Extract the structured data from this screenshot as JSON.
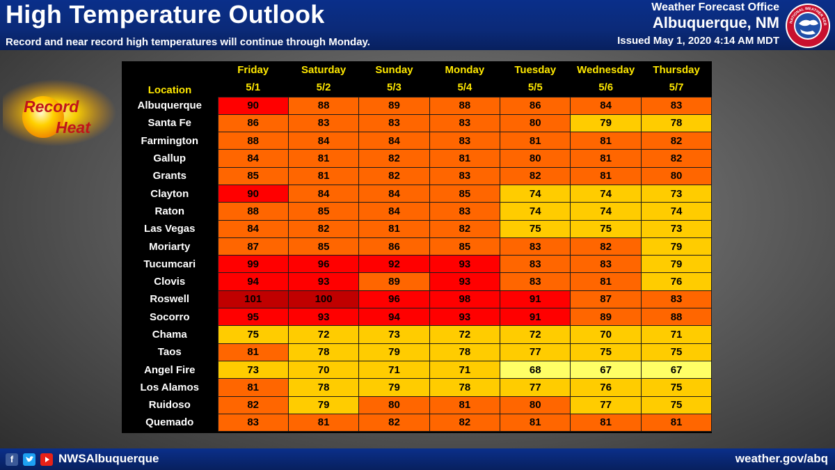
{
  "header": {
    "title": "High Temperature Outlook",
    "subtitle": "Record and near record high temperatures will continue through Monday.",
    "office": "Weather Forecast Office",
    "city": "Albuquerque, NM",
    "issued": "Issued May 1, 2020 4:14 AM MDT",
    "logo_text": "NATIONAL WEATHER SERVICE"
  },
  "badge": {
    "line1": "Record",
    "line2": "Heat"
  },
  "footer": {
    "handle": "NWSAlbuquerque",
    "website": "weather.gov/abq"
  },
  "colors": {
    "header_blue": "#0b2a78",
    "t67_68": "#ffff66",
    "t70_79": "#ffcc00",
    "t80_89": "#ff6600",
    "t90_99": "#ff0000",
    "t100plus": "#c00000"
  },
  "chart_data": {
    "type": "table",
    "title": "High Temperature Outlook",
    "location_header": "Location",
    "days": [
      "Friday",
      "Saturday",
      "Sunday",
      "Monday",
      "Tuesday",
      "Wednesday",
      "Thursday"
    ],
    "dates": [
      "5/1",
      "5/2",
      "5/3",
      "5/4",
      "5/5",
      "5/6",
      "5/7"
    ],
    "rows": [
      {
        "location": "Albuquerque",
        "values": [
          90,
          88,
          89,
          88,
          86,
          84,
          83
        ]
      },
      {
        "location": "Santa Fe",
        "values": [
          86,
          83,
          83,
          83,
          80,
          79,
          78
        ]
      },
      {
        "location": "Farmington",
        "values": [
          88,
          84,
          84,
          83,
          81,
          81,
          82
        ]
      },
      {
        "location": "Gallup",
        "values": [
          84,
          81,
          82,
          81,
          80,
          81,
          82
        ]
      },
      {
        "location": "Grants",
        "values": [
          85,
          81,
          82,
          83,
          82,
          81,
          80
        ]
      },
      {
        "location": "Clayton",
        "values": [
          90,
          84,
          84,
          85,
          74,
          74,
          73
        ]
      },
      {
        "location": "Raton",
        "values": [
          88,
          85,
          84,
          83,
          74,
          74,
          74
        ]
      },
      {
        "location": "Las Vegas",
        "values": [
          84,
          82,
          81,
          82,
          75,
          75,
          73
        ]
      },
      {
        "location": "Moriarty",
        "values": [
          87,
          85,
          86,
          85,
          83,
          82,
          79
        ]
      },
      {
        "location": "Tucumcari",
        "values": [
          99,
          96,
          92,
          93,
          83,
          83,
          79
        ]
      },
      {
        "location": "Clovis",
        "values": [
          94,
          93,
          89,
          93,
          83,
          81,
          76
        ]
      },
      {
        "location": "Roswell",
        "values": [
          101,
          100,
          96,
          98,
          91,
          87,
          83
        ]
      },
      {
        "location": "Socorro",
        "values": [
          95,
          93,
          94,
          93,
          91,
          89,
          88
        ]
      },
      {
        "location": "Chama",
        "values": [
          75,
          72,
          73,
          72,
          72,
          70,
          71
        ]
      },
      {
        "location": "Taos",
        "values": [
          81,
          78,
          79,
          78,
          77,
          75,
          75
        ]
      },
      {
        "location": "Angel Fire",
        "values": [
          73,
          70,
          71,
          71,
          68,
          67,
          67
        ]
      },
      {
        "location": "Los Alamos",
        "values": [
          81,
          78,
          79,
          78,
          77,
          76,
          75
        ]
      },
      {
        "location": "Ruidoso",
        "values": [
          82,
          79,
          80,
          81,
          80,
          77,
          75
        ]
      },
      {
        "location": "Quemado",
        "values": [
          83,
          81,
          82,
          82,
          81,
          81,
          81
        ]
      }
    ]
  }
}
